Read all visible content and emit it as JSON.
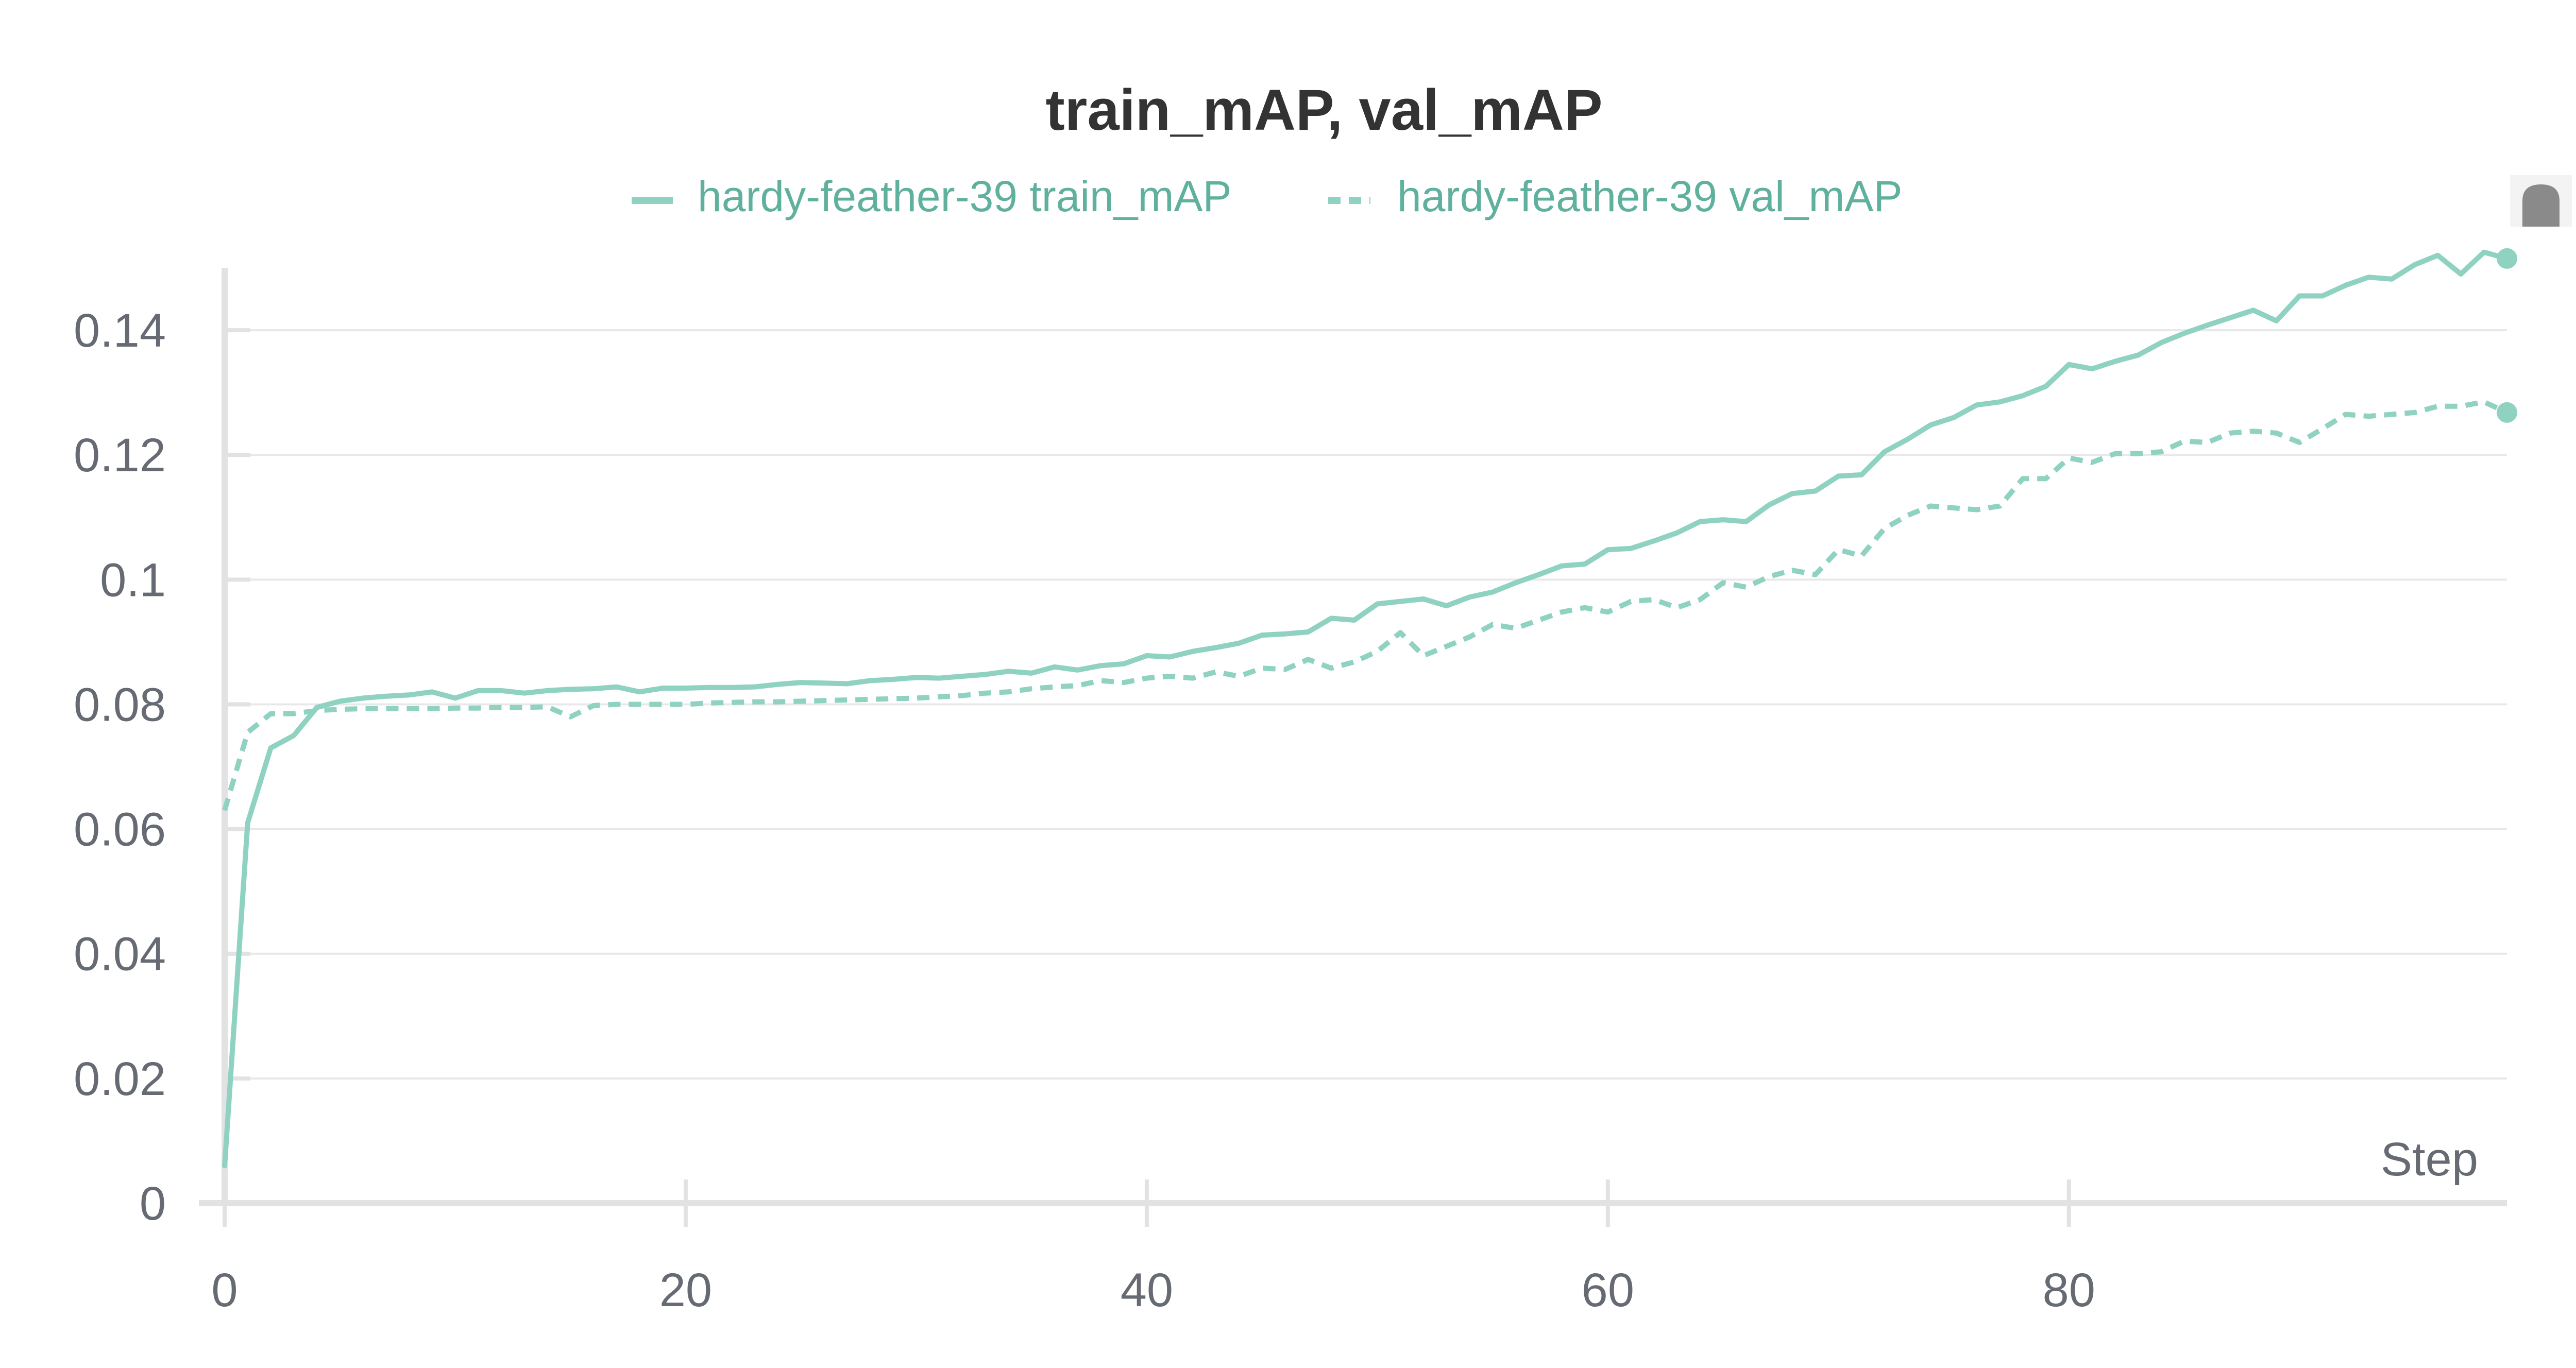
{
  "chart_data": {
    "type": "line",
    "title": "train_mAP, val_mAP",
    "xlabel": "Step",
    "ylabel": "",
    "xlim": [
      0,
      99
    ],
    "ylim": [
      0,
      0.15
    ],
    "x_ticks": [
      {
        "value": 0,
        "label": "0"
      },
      {
        "value": 20,
        "label": "20"
      },
      {
        "value": 40,
        "label": "40"
      },
      {
        "value": 60,
        "label": "60"
      },
      {
        "value": 80,
        "label": "80"
      }
    ],
    "y_ticks": [
      {
        "value": 0,
        "label": "0"
      },
      {
        "value": 0.02,
        "label": "0.02"
      },
      {
        "value": 0.04,
        "label": "0.04"
      },
      {
        "value": 0.06,
        "label": "0.06"
      },
      {
        "value": 0.08,
        "label": "0.08"
      },
      {
        "value": 0.1,
        "label": "0.1"
      },
      {
        "value": 0.12,
        "label": "0.12"
      },
      {
        "value": 0.14,
        "label": "0.14"
      }
    ],
    "grid": true,
    "legend_position": "top-center",
    "series": [
      {
        "name": "hardy-feather-39 train_mAP",
        "color": "#8fd2c1",
        "dash": "solid",
        "x": [
          0,
          1,
          2,
          3,
          4,
          5,
          6,
          7,
          8,
          9,
          10,
          11,
          12,
          13,
          14,
          15,
          16,
          17,
          18,
          19,
          20,
          21,
          22,
          23,
          24,
          25,
          26,
          27,
          28,
          29,
          30,
          31,
          32,
          33,
          34,
          35,
          36,
          37,
          38,
          39,
          40,
          41,
          42,
          43,
          44,
          45,
          46,
          47,
          48,
          49,
          50,
          51,
          52,
          53,
          54,
          55,
          56,
          57,
          58,
          59,
          60,
          61,
          62,
          63,
          64,
          65,
          66,
          67,
          68,
          69,
          70,
          71,
          72,
          73,
          74,
          75,
          76,
          77,
          78,
          79,
          80,
          81,
          82,
          83,
          84,
          85,
          86,
          87,
          88,
          89,
          90,
          91,
          92,
          93,
          94,
          95,
          96,
          97,
          98,
          99
        ],
        "values": [
          0.006,
          0.061,
          0.073,
          0.075,
          0.0795,
          0.0805,
          0.081,
          0.0813,
          0.0815,
          0.082,
          0.081,
          0.0822,
          0.0822,
          0.0818,
          0.0822,
          0.0824,
          0.0825,
          0.0828,
          0.082,
          0.0826,
          0.0826,
          0.0827,
          0.0827,
          0.0828,
          0.0832,
          0.0835,
          0.0834,
          0.0833,
          0.0838,
          0.084,
          0.0843,
          0.0842,
          0.0845,
          0.0848,
          0.0853,
          0.085,
          0.086,
          0.0855,
          0.0862,
          0.0865,
          0.0878,
          0.0876,
          0.0885,
          0.0891,
          0.0898,
          0.0911,
          0.0913,
          0.0916,
          0.0938,
          0.0935,
          0.0961,
          0.0965,
          0.0969,
          0.0958,
          0.0972,
          0.098,
          0.0995,
          0.1008,
          0.1022,
          0.1025,
          0.1048,
          0.105,
          0.1062,
          0.1075,
          0.1093,
          0.1096,
          0.1093,
          0.112,
          0.1138,
          0.1142,
          0.1166,
          0.1168,
          0.1205,
          0.1225,
          0.1248,
          0.126,
          0.128,
          0.1285,
          0.1295,
          0.131,
          0.1345,
          0.1338,
          0.135,
          0.136,
          0.138,
          0.1395,
          0.1408,
          0.142,
          0.1432,
          0.1415,
          0.1455,
          0.1455,
          0.1472,
          0.1485,
          0.1482,
          0.1505,
          0.152,
          0.149,
          0.1525,
          0.1515
        ]
      },
      {
        "name": "hardy-feather-39 val_mAP",
        "color": "#8fd2c1",
        "dash": "dashed",
        "x": [
          0,
          1,
          2,
          3,
          4,
          5,
          6,
          7,
          8,
          9,
          10,
          11,
          12,
          13,
          14,
          15,
          16,
          17,
          18,
          19,
          20,
          21,
          22,
          23,
          24,
          25,
          26,
          27,
          28,
          29,
          30,
          31,
          32,
          33,
          34,
          35,
          36,
          37,
          38,
          39,
          40,
          41,
          42,
          43,
          44,
          45,
          46,
          47,
          48,
          49,
          50,
          51,
          52,
          53,
          54,
          55,
          56,
          57,
          58,
          59,
          60,
          61,
          62,
          63,
          64,
          65,
          66,
          67,
          68,
          69,
          70,
          71,
          72,
          73,
          74,
          75,
          76,
          77,
          78,
          79,
          80,
          81,
          82,
          83,
          84,
          85,
          86,
          87,
          88,
          89,
          90,
          91,
          92,
          93,
          94,
          95,
          96,
          97,
          98,
          99
        ],
        "values": [
          0.063,
          0.0755,
          0.0785,
          0.0785,
          0.079,
          0.0792,
          0.0793,
          0.0793,
          0.0793,
          0.0793,
          0.0794,
          0.0794,
          0.0795,
          0.0795,
          0.0796,
          0.078,
          0.0798,
          0.08,
          0.08,
          0.08,
          0.08,
          0.0802,
          0.0803,
          0.0804,
          0.0804,
          0.0805,
          0.0806,
          0.0807,
          0.0808,
          0.0809,
          0.081,
          0.0812,
          0.0814,
          0.0818,
          0.082,
          0.0825,
          0.0828,
          0.083,
          0.0838,
          0.0835,
          0.0842,
          0.0845,
          0.0842,
          0.0852,
          0.0845,
          0.0858,
          0.0856,
          0.0872,
          0.0858,
          0.0868,
          0.0885,
          0.0915,
          0.0878,
          0.0893,
          0.0908,
          0.0928,
          0.0922,
          0.0935,
          0.0948,
          0.0955,
          0.0948,
          0.0965,
          0.0968,
          0.0955,
          0.0968,
          0.0995,
          0.0988,
          0.1005,
          0.1015,
          0.1008,
          0.1048,
          0.1038,
          0.1082,
          0.1103,
          0.1118,
          0.1115,
          0.1112,
          0.1118,
          0.1162,
          0.1162,
          0.1195,
          0.1188,
          0.1202,
          0.1202,
          0.1205,
          0.1222,
          0.122,
          0.1235,
          0.1238,
          0.1235,
          0.122,
          0.1242,
          0.1265,
          0.1262,
          0.1265,
          0.1268,
          0.1278,
          0.1278,
          0.1285,
          0.1268
        ]
      }
    ]
  },
  "legend": {
    "items": [
      {
        "label": "hardy-feather-39 train_mAP"
      },
      {
        "label": "hardy-feather-39 val_mAP"
      }
    ]
  }
}
